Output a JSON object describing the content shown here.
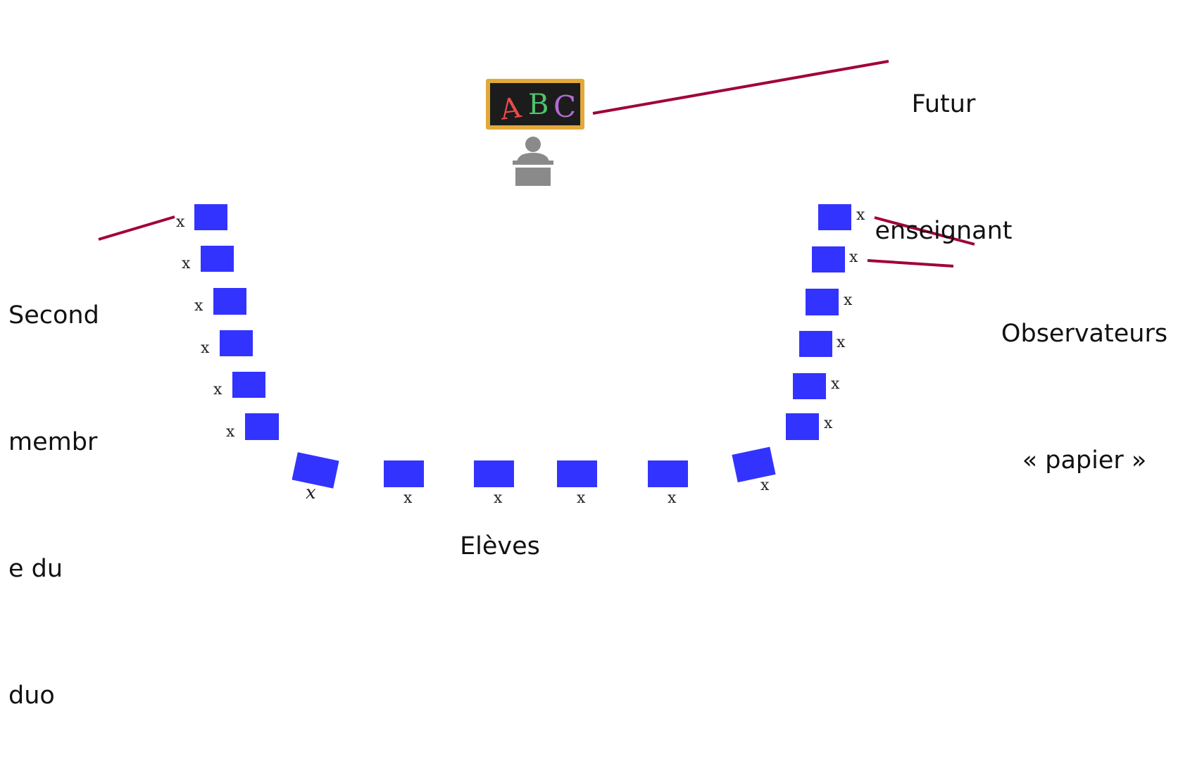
{
  "labels": {
    "futur_enseignant": [
      "Futur",
      "enseignant"
    ],
    "second_membre": [
      "Second",
      "membr",
      "e du",
      "duo"
    ],
    "observateurs": [
      "Observateurs",
      "« papier »"
    ],
    "eleves": "Elèves"
  },
  "blackboard": {
    "letters": [
      "A",
      "B",
      "C"
    ],
    "letter_colors": [
      "#e84a4a",
      "#4ec46a",
      "#b46ad8"
    ],
    "board_color": "#1c1c1c",
    "frame_color": "#e2a93a"
  },
  "colors": {
    "desk": "#3333ff",
    "connector": "#a0003c",
    "teacher_icon": "#8a8a8a"
  },
  "desk_marker": "x",
  "icons": [
    "blackboard-icon",
    "teacher-at-desk-icon"
  ]
}
